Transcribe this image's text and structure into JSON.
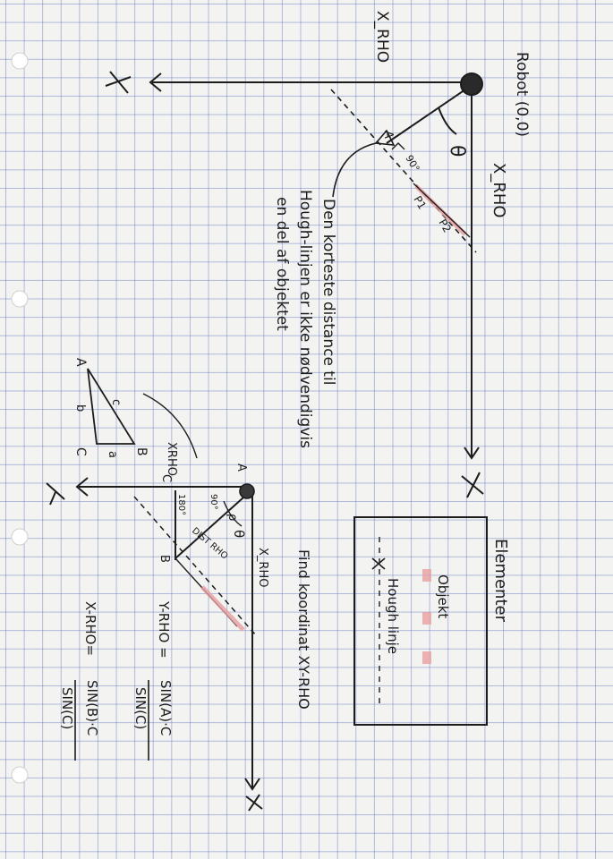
{
  "top_diagram": {
    "x_rho_axis": "X_RHO",
    "robot_label": "Robot (0,0)",
    "theta": "θ",
    "x_rho_line": "X_RHO",
    "point_a": "A",
    "angle_90": "90°",
    "p1": "P1",
    "p2": "P2",
    "x_marker": "X"
  },
  "note": {
    "line1": "Den korteste distance til",
    "line2": "Hough-linjen er ikke nødvendigvis",
    "line3": "en del af objektet"
  },
  "small_triangle": {
    "a": "A",
    "b": "B",
    "c": "C",
    "side_a": "a",
    "side_b": "b",
    "side_c": "c"
  },
  "middle_diagram": {
    "y_marker": "Y",
    "x_marker": "X",
    "xrho_label": "XRHO",
    "c": "C",
    "a": "A",
    "b": "B",
    "angle_90": "90°",
    "angle_180": "180°",
    "rho_label": "ρ",
    "theta": "θ",
    "dist_rho": "DIST RHO",
    "x_rho": "X_RHO"
  },
  "formulas": {
    "find_text": "Find koordinat XY-RHO",
    "yrho_label": "Y-RHO =",
    "yrho_num": "SIN(A)·C",
    "yrho_den": "SIN(C)",
    "xrho_label": "X-RHO=",
    "xrho_num": "SIN(B)·C",
    "xrho_den": "SIN(C)"
  },
  "legend": {
    "title": "Elementer",
    "objekt": "Objekt",
    "hough": "Hough linje"
  },
  "colors": {
    "ink": "#1c1c1c",
    "highlight": "#e8a0a0",
    "grid": "#5a73be"
  }
}
